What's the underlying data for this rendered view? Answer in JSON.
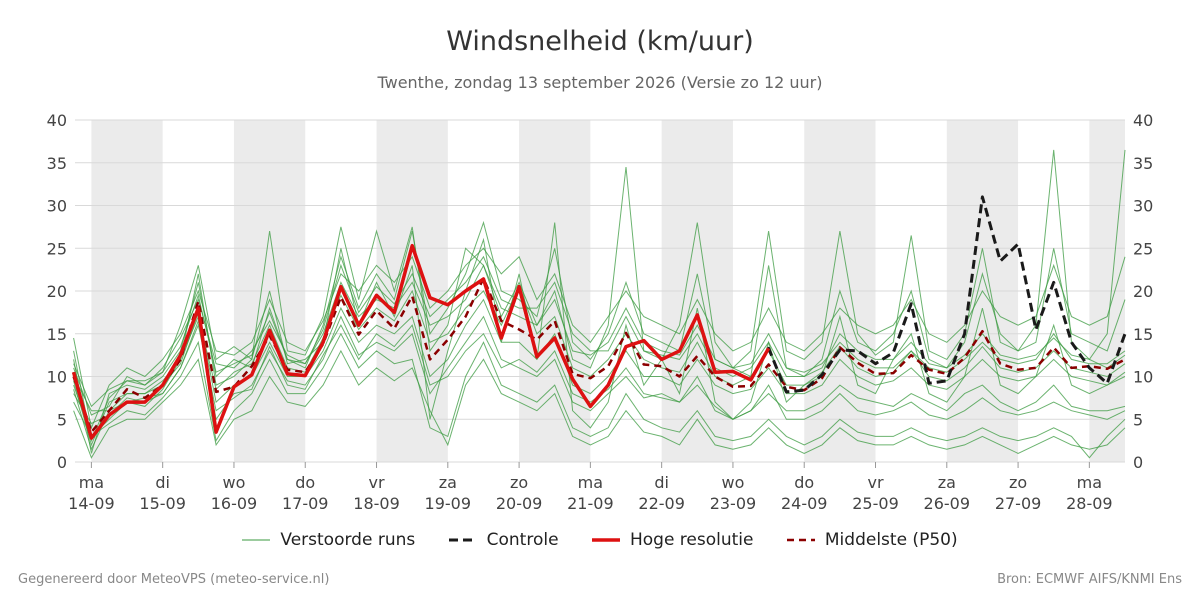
{
  "title": "Windsnelheid (km/uur)",
  "subtitle": "Twenthe, zondag 13 september 2026 (Versie zo 12 uur)",
  "footer_left": "Gegenereerd door MeteoVPS (meteo-service.nl)",
  "footer_right": "Bron: ECMWF AIFS/KNMI Ens",
  "colors": {
    "ensemble": "#3a9a3f",
    "control": "#1a1a1a",
    "high_res": "#dd1111",
    "median": "#8b0000",
    "weekend_band": "#ebebeb",
    "grid": "#d9d9d9"
  },
  "legend": [
    {
      "key": "ensemble",
      "label": "Verstoorde runs"
    },
    {
      "key": "control",
      "label": "Controle"
    },
    {
      "key": "high_res",
      "label": "Hoge resolutie"
    },
    {
      "key": "median",
      "label": "Middelste (P50)"
    }
  ],
  "chart_data": {
    "type": "line",
    "x_unit": "days",
    "x_range": [
      13.77,
      28.5
    ],
    "ylim": [
      0,
      40
    ],
    "yticks": [
      0,
      5,
      10,
      15,
      20,
      25,
      30,
      35,
      40
    ],
    "grid": true,
    "y_axis_both_sides": true,
    "legend_position": "bottom",
    "day_ticks": [
      {
        "x": 14,
        "day": "ma",
        "date": "14-09"
      },
      {
        "x": 15,
        "day": "di",
        "date": "15-09"
      },
      {
        "x": 16,
        "day": "wo",
        "date": "16-09"
      },
      {
        "x": 17,
        "day": "do",
        "date": "17-09"
      },
      {
        "x": 18,
        "day": "vr",
        "date": "18-09"
      },
      {
        "x": 19,
        "day": "za",
        "date": "19-09"
      },
      {
        "x": 20,
        "day": "zo",
        "date": "20-09"
      },
      {
        "x": 21,
        "day": "ma",
        "date": "21-09"
      },
      {
        "x": 22,
        "day": "di",
        "date": "22-09"
      },
      {
        "x": 23,
        "day": "wo",
        "date": "23-09"
      },
      {
        "x": 24,
        "day": "do",
        "date": "24-09"
      },
      {
        "x": 25,
        "day": "vr",
        "date": "25-09"
      },
      {
        "x": 26,
        "day": "za",
        "date": "26-09"
      },
      {
        "x": 27,
        "day": "zo",
        "date": "27-09"
      },
      {
        "x": 28,
        "day": "ma",
        "date": "28-09"
      }
    ],
    "night_bands": [
      [
        14.0,
        15.0
      ],
      [
        16.0,
        17.0
      ],
      [
        18.0,
        19.0
      ],
      [
        20.0,
        21.0
      ],
      [
        22.0,
        23.0
      ],
      [
        24.0,
        25.0
      ],
      [
        26.0,
        27.0
      ],
      [
        28.0,
        28.5
      ]
    ],
    "series": [
      {
        "name": "Hoge resolutie",
        "key": "high_res",
        "x": [
          13.75,
          14.0,
          14.25,
          14.5,
          14.75,
          15.0,
          15.25,
          15.5,
          15.75,
          16.0,
          16.25,
          16.5,
          16.75,
          17.0,
          17.25,
          17.5,
          17.75,
          18.0,
          18.25,
          18.5,
          18.75,
          19.0,
          19.25,
          19.5,
          19.75,
          20.0,
          20.25,
          20.5,
          20.75,
          21.0,
          21.25,
          21.5,
          21.75,
          22.0,
          22.25,
          22.5,
          22.75,
          23.0,
          23.25,
          23.5
        ],
        "values": [
          10.5,
          2.8,
          5.5,
          7.0,
          7.0,
          9.0,
          12.5,
          18.0,
          3.5,
          8.8,
          10.2,
          15.4,
          10.3,
          10.1,
          14.0,
          20.5,
          16.0,
          19.5,
          17.5,
          25.3,
          19.2,
          18.4,
          20.0,
          21.4,
          14.5,
          20.5,
          12.3,
          14.5,
          9.7,
          6.5,
          9.0,
          13.5,
          14.2,
          12.0,
          13.0,
          17.2,
          10.5,
          10.6,
          9.6,
          13.3
        ]
      },
      {
        "name": "Controle",
        "key": "control",
        "x": [
          13.75,
          14.0,
          14.25,
          14.5,
          14.75,
          15.0,
          15.25,
          15.5,
          15.75,
          16.0,
          16.25,
          16.5,
          16.75,
          17.0,
          17.25,
          17.5,
          17.75,
          18.0,
          18.25,
          18.5,
          18.75,
          19.0,
          19.25,
          19.5,
          19.75,
          20.0,
          20.25,
          20.5,
          20.75,
          21.0,
          21.25,
          21.5,
          21.75,
          22.0,
          22.25,
          22.5,
          22.75,
          23.0,
          23.25,
          23.5,
          23.75,
          24.0,
          24.25,
          24.5,
          24.75,
          25.0,
          25.25,
          25.5,
          25.75,
          26.0,
          26.25,
          26.5,
          26.75,
          27.0,
          27.25,
          27.5,
          27.75,
          28.0,
          28.25,
          28.5
        ],
        "values": [
          10.5,
          2.8,
          5.5,
          7.0,
          7.0,
          9.0,
          12.5,
          18.0,
          3.5,
          8.8,
          10.2,
          15.4,
          10.3,
          10.1,
          14.0,
          20.5,
          16.0,
          19.5,
          17.5,
          25.3,
          19.2,
          18.4,
          20.0,
          21.4,
          14.5,
          20.5,
          12.3,
          14.5,
          9.7,
          6.5,
          9.0,
          13.5,
          14.2,
          12.0,
          13.0,
          17.2,
          10.5,
          10.6,
          9.6,
          13.3,
          8.2,
          8.4,
          10.2,
          13.1,
          13.0,
          11.5,
          12.8,
          18.5,
          9.2,
          9.5,
          15.0,
          31.0,
          23.5,
          25.5,
          15.5,
          21.0,
          14.0,
          11.0,
          9.2,
          15.0
        ]
      },
      {
        "name": "Middelste (P50)",
        "key": "median",
        "x": [
          13.75,
          14.0,
          14.25,
          14.5,
          14.75,
          15.0,
          15.25,
          15.5,
          15.75,
          16.0,
          16.25,
          16.5,
          16.75,
          17.0,
          17.25,
          17.5,
          17.75,
          18.0,
          18.25,
          18.5,
          18.75,
          19.0,
          19.25,
          19.5,
          19.75,
          20.0,
          20.25,
          20.5,
          20.75,
          21.0,
          21.25,
          21.5,
          21.75,
          22.0,
          22.25,
          22.5,
          22.75,
          23.0,
          23.25,
          23.5,
          23.75,
          24.0,
          24.25,
          24.5,
          24.75,
          25.0,
          25.25,
          25.5,
          25.75,
          26.0,
          26.25,
          26.5,
          26.75,
          27.0,
          27.25,
          27.5,
          27.75,
          28.0,
          28.25,
          28.5
        ],
        "values": [
          10.0,
          3.5,
          6.0,
          8.5,
          7.5,
          9.0,
          12.0,
          18.8,
          8.2,
          8.8,
          11.2,
          14.8,
          10.8,
          10.5,
          13.8,
          19.3,
          14.9,
          17.7,
          15.6,
          19.4,
          12.0,
          14.3,
          17.0,
          21.5,
          16.5,
          15.5,
          14.3,
          16.5,
          10.3,
          9.8,
          11.2,
          15.1,
          11.4,
          11.2,
          10.0,
          12.4,
          10.0,
          8.8,
          8.9,
          11.4,
          8.8,
          8.4,
          9.8,
          13.4,
          11.6,
          10.3,
          10.4,
          12.5,
          10.8,
          10.3,
          12.2,
          15.3,
          11.5,
          10.8,
          11.0,
          13.4,
          11.0,
          11.2,
          10.9,
          12.0
        ]
      }
    ],
    "ensemble_members": {
      "name": "Verstoorde runs",
      "key": "ensemble",
      "x_start": 13.75,
      "x_step": 0.25,
      "values": [
        [
          12.0,
          1.0,
          8.0,
          9.0,
          8.5,
          10.0,
          13.0,
          21.0,
          10.0,
          12.0,
          11.0,
          18.0,
          12.0,
          11.0,
          16.0,
          24.0,
          18.0,
          22.0,
          19.0,
          27.0,
          15.0,
          18.0,
          22.0,
          28.0,
          20.0,
          19.0,
          17.0,
          25.0,
          14.0,
          12.0,
          15.0,
          21.0,
          15.0,
          14.0,
          13.0,
          22.0,
          12.0,
          11.0,
          10.0,
          23.0,
          11.0,
          10.0,
          12.0,
          20.0,
          14.0,
          13.0,
          15.0,
          20.0,
          12.0,
          11.0,
          14.0,
          22.0,
          15.0,
          13.0,
          14.0,
          25.0,
          15.0,
          14.0,
          13.0,
          19.0
        ],
        [
          8.0,
          4.5,
          5.5,
          7.5,
          7.0,
          8.0,
          11.0,
          16.0,
          6.0,
          7.5,
          9.0,
          13.0,
          9.5,
          9.0,
          12.0,
          17.0,
          12.5,
          14.0,
          13.0,
          15.0,
          8.0,
          11.0,
          14.0,
          17.0,
          12.0,
          11.0,
          10.0,
          12.0,
          7.0,
          6.0,
          8.0,
          10.0,
          7.5,
          8.0,
          7.0,
          9.0,
          6.5,
          5.0,
          6.0,
          8.0,
          6.0,
          6.0,
          7.0,
          9.0,
          7.5,
          7.0,
          6.5,
          8.0,
          7.0,
          6.0,
          8.0,
          9.0,
          7.0,
          6.0,
          7.0,
          9.0,
          6.5,
          6.0,
          6.0,
          6.5
        ],
        [
          9.5,
          2.0,
          7.0,
          8.0,
          8.0,
          9.5,
          12.0,
          22.0,
          9.0,
          10.0,
          12.0,
          20.0,
          11.5,
          12.0,
          14.0,
          25.0,
          16.0,
          21.0,
          17.0,
          23.0,
          5.0,
          13.0,
          20.0,
          26.0,
          14.0,
          22.0,
          12.0,
          28.0,
          6.0,
          4.0,
          7.0,
          16.0,
          9.0,
          12.0,
          8.0,
          18.0,
          7.0,
          5.0,
          7.0,
          14.0,
          7.0,
          9.0,
          10.0,
          17.0,
          9.0,
          8.0,
          12.0,
          15.0,
          8.0,
          7.0,
          10.0,
          18.0,
          9.0,
          8.0,
          10.0,
          16.0,
          9.0,
          8.0,
          9.0,
          10.0
        ],
        [
          11.0,
          5.5,
          6.5,
          10.0,
          9.0,
          11.0,
          14.5,
          19.0,
          11.5,
          11.0,
          13.0,
          16.5,
          12.5,
          11.5,
          15.0,
          21.0,
          17.0,
          19.0,
          18.0,
          21.0,
          16.0,
          17.0,
          19.0,
          23.0,
          18.0,
          17.0,
          16.0,
          19.0,
          13.0,
          12.5,
          14.0,
          18.0,
          14.0,
          13.0,
          12.5,
          16.0,
          12.0,
          11.0,
          11.5,
          15.0,
          11.0,
          10.5,
          11.5,
          14.0,
          12.0,
          11.0,
          11.0,
          13.0,
          11.0,
          10.5,
          12.0,
          14.0,
          12.0,
          11.5,
          12.0,
          15.0,
          12.0,
          11.5,
          11.5,
          13.0
        ],
        [
          7.0,
          3.0,
          4.5,
          6.0,
          5.5,
          7.5,
          10.0,
          14.0,
          2.5,
          6.0,
          8.0,
          12.0,
          8.0,
          8.0,
          11.0,
          15.0,
          11.0,
          13.0,
          11.5,
          12.0,
          4.0,
          3.0,
          10.0,
          14.0,
          9.0,
          8.0,
          7.0,
          9.0,
          4.0,
          3.0,
          4.0,
          8.0,
          5.0,
          4.0,
          3.5,
          6.0,
          3.0,
          2.5,
          3.0,
          5.0,
          3.0,
          2.0,
          3.0,
          5.0,
          3.5,
          3.0,
          3.0,
          4.0,
          3.0,
          2.5,
          3.0,
          4.0,
          3.0,
          2.5,
          3.0,
          4.0,
          3.0,
          0.5,
          3.0,
          5.0
        ],
        [
          13.0,
          2.5,
          7.5,
          9.5,
          9.5,
          10.5,
          16.0,
          23.0,
          12.0,
          13.5,
          12.0,
          27.0,
          13.0,
          12.5,
          17.0,
          27.5,
          19.0,
          27.0,
          20.0,
          27.5,
          13.0,
          16.0,
          25.0,
          23.0,
          17.0,
          21.0,
          16.0,
          20.0,
          12.0,
          11.0,
          16.0,
          34.5,
          13.0,
          12.0,
          16.0,
          28.0,
          14.0,
          11.0,
          13.0,
          27.0,
          13.0,
          12.0,
          14.0,
          27.0,
          15.0,
          12.5,
          14.0,
          26.5,
          13.0,
          12.0,
          15.0,
          25.0,
          14.0,
          13.0,
          16.0,
          36.5,
          14.0,
          12.0,
          15.0,
          36.5
        ],
        [
          10.0,
          6.0,
          6.0,
          8.0,
          8.0,
          9.0,
          11.5,
          17.5,
          7.0,
          9.0,
          10.0,
          14.0,
          10.0,
          10.0,
          13.0,
          18.0,
          14.0,
          16.0,
          15.0,
          17.0,
          10.0,
          12.0,
          16.0,
          19.0,
          14.0,
          14.0,
          12.0,
          15.0,
          9.0,
          8.0,
          10.0,
          13.0,
          10.0,
          10.0,
          9.0,
          12.0,
          9.0,
          8.0,
          8.5,
          11.0,
          8.0,
          8.0,
          9.0,
          12.0,
          10.0,
          9.0,
          9.5,
          11.0,
          9.0,
          8.5,
          10.0,
          12.0,
          10.0,
          9.5,
          10.0,
          12.0,
          10.0,
          9.5,
          9.0,
          10.5
        ],
        [
          14.5,
          4.0,
          9.0,
          11.0,
          10.0,
          12.0,
          15.0,
          20.0,
          13.0,
          12.5,
          14.0,
          19.0,
          14.0,
          13.0,
          16.5,
          22.0,
          20.0,
          23.0,
          21.0,
          24.0,
          18.0,
          20.0,
          23.0,
          25.0,
          22.0,
          24.0,
          19.0,
          22.0,
          16.0,
          14.0,
          17.0,
          20.0,
          17.0,
          16.0,
          15.0,
          19.0,
          15.0,
          13.0,
          14.0,
          18.0,
          14.0,
          13.0,
          15.0,
          18.0,
          16.0,
          15.0,
          16.0,
          19.0,
          15.0,
          14.0,
          16.0,
          20.0,
          17.0,
          16.0,
          17.0,
          23.0,
          17.0,
          16.0,
          17.0,
          24.0
        ],
        [
          6.0,
          0.5,
          4.0,
          5.0,
          5.0,
          7.0,
          9.0,
          12.0,
          2.0,
          5.0,
          6.0,
          10.0,
          7.0,
          6.5,
          9.0,
          13.0,
          9.0,
          11.0,
          9.5,
          11.0,
          6.0,
          2.0,
          9.0,
          12.0,
          8.0,
          7.0,
          6.0,
          8.0,
          3.0,
          2.0,
          3.0,
          6.0,
          3.5,
          3.0,
          2.0,
          5.0,
          2.0,
          1.5,
          2.0,
          4.0,
          2.0,
          1.0,
          2.0,
          4.0,
          2.5,
          2.0,
          2.0,
          3.0,
          2.0,
          1.5,
          2.0,
          3.0,
          2.0,
          1.0,
          2.0,
          3.0,
          2.0,
          1.5,
          2.0,
          4.0
        ],
        [
          9.0,
          3.0,
          5.0,
          7.0,
          6.5,
          8.5,
          12.0,
          17.0,
          8.5,
          10.5,
          11.5,
          16.0,
          11.0,
          10.5,
          14.5,
          19.5,
          15.5,
          18.0,
          16.5,
          20.0,
          14.0,
          15.0,
          18.0,
          20.0,
          16.0,
          20.5,
          15.0,
          17.0,
          11.0,
          10.0,
          12.0,
          15.0,
          12.0,
          11.0,
          10.5,
          14.0,
          10.0,
          9.0,
          10.0,
          13.0,
          9.0,
          9.0,
          10.5,
          13.5,
          11.0,
          10.0,
          10.5,
          13.0,
          10.0,
          9.5,
          11.0,
          13.5,
          11.0,
          10.5,
          11.0,
          13.0,
          11.0,
          10.5,
          10.0,
          11.5
        ],
        [
          11.5,
          6.5,
          8.5,
          9.5,
          9.0,
          10.5,
          13.5,
          19.5,
          10.5,
          11.5,
          12.5,
          17.5,
          12.0,
          11.5,
          15.5,
          23.0,
          17.5,
          20.5,
          18.5,
          22.0,
          17.0,
          19.0,
          21.0,
          24.0,
          19.0,
          18.0,
          18.0,
          21.0,
          15.0,
          13.0,
          13.0,
          17.0,
          13.0,
          12.5,
          12.0,
          15.0,
          11.0,
          10.0,
          11.0,
          14.0,
          10.0,
          10.0,
          11.0,
          15.0,
          13.0,
          12.0,
          12.0,
          14.0,
          11.5,
          11.0,
          12.5,
          15.0,
          12.5,
          12.0,
          12.5,
          14.5,
          12.5,
          12.0,
          11.0,
          12.5
        ],
        [
          8.5,
          1.5,
          6.0,
          7.0,
          7.5,
          8.0,
          11.0,
          16.5,
          5.0,
          8.0,
          8.5,
          13.5,
          9.0,
          8.5,
          12.5,
          16.0,
          12.0,
          15.0,
          13.5,
          16.0,
          9.0,
          10.0,
          13.0,
          15.0,
          11.0,
          12.0,
          10.5,
          13.0,
          8.0,
          7.0,
          8.5,
          11.0,
          8.0,
          7.5,
          7.0,
          10.0,
          6.0,
          5.0,
          6.0,
          9.0,
          5.0,
          5.0,
          6.0,
          8.0,
          6.0,
          5.5,
          6.0,
          7.0,
          5.5,
          5.0,
          6.0,
          7.5,
          6.0,
          5.5,
          6.0,
          7.0,
          6.0,
          5.5,
          5.0,
          6.0
        ]
      ]
    }
  }
}
